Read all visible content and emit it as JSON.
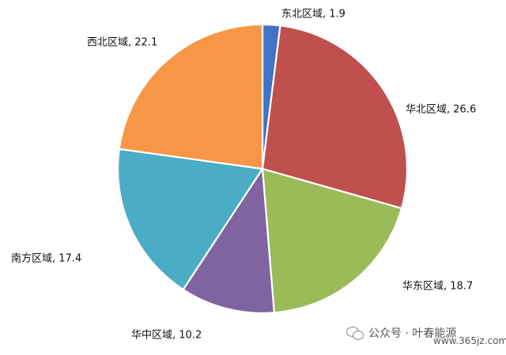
{
  "chart_data": {
    "type": "pie",
    "title": "",
    "slices": [
      {
        "label": "东北区域",
        "value": 1.9,
        "text": "东北区域, 1.9",
        "color": "#4472c4"
      },
      {
        "label": "华北区域",
        "value": 26.6,
        "text": "华北区域, 26.6",
        "color": "#c0504d"
      },
      {
        "label": "华东区域",
        "value": 18.7,
        "text": "华东区域, 18.7",
        "color": "#9bbb59"
      },
      {
        "label": "华中区域",
        "value": 10.2,
        "text": "华中区域, 10.2",
        "color": "#8064a2"
      },
      {
        "label": "南方区域",
        "value": 17.4,
        "text": "南方区域, 17.4",
        "color": "#4bacc6"
      },
      {
        "label": "西北区域",
        "value": 22.1,
        "text": "西北区域, 22.1",
        "color": "#f79646"
      }
    ],
    "start": "12 o'clock",
    "direction": "clockwise",
    "legend": "none",
    "labels": "outside"
  },
  "watermark": {
    "text": "公众号 · 叶春能源",
    "site": "www.365jz.com",
    "icon": "wechat-icon"
  }
}
